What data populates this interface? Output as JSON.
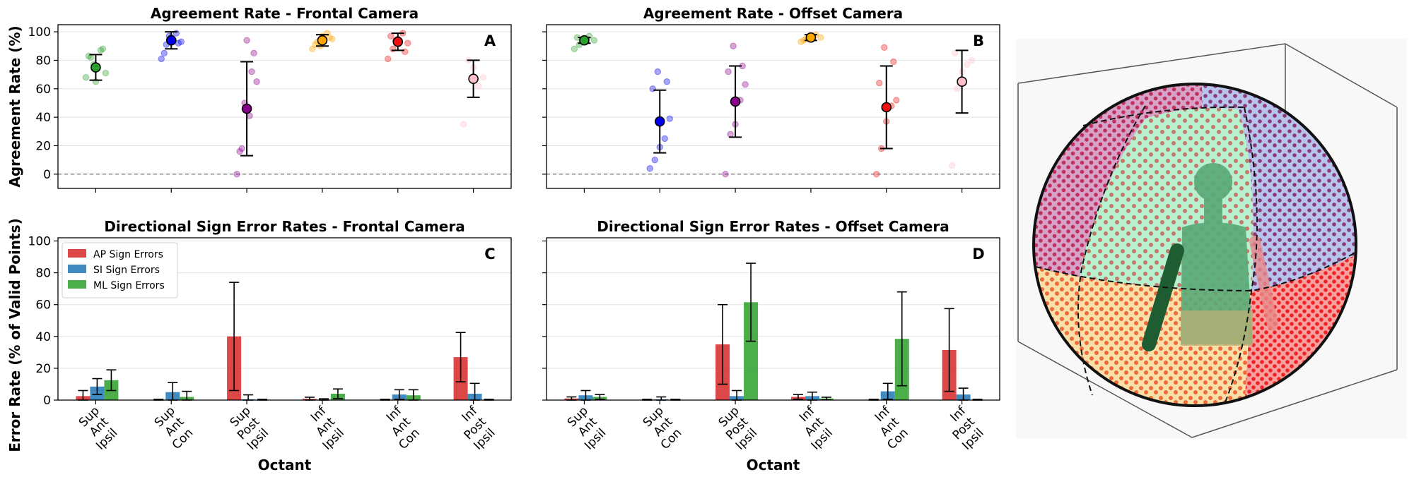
{
  "figure": {
    "shared_ylabel_top": "Agreement Rate (%)",
    "shared_ylabel_bottom": "Error Rate (% of Valid Points)"
  },
  "chart_data": [
    {
      "id": "A",
      "type": "scatter",
      "title": "Agreement Rate - Frontal Camera",
      "panel_label": "A",
      "xlabel": "",
      "ylabel": "Agreement Rate (%)",
      "ylim": [
        -10,
        105
      ],
      "yticks": [
        0,
        20,
        40,
        60,
        80,
        100
      ],
      "grid": true,
      "reference_line": 0,
      "categories": [
        "Sup Ant Ipsil",
        "Sup Ant Con",
        "Sup Post Ipsil",
        "Inf Ant Ipsil",
        "Inf Ant Con",
        "Inf Post Ipsil"
      ],
      "mean": [
        75,
        94,
        46,
        94,
        93,
        67
      ],
      "sd": [
        9,
        6,
        33,
        4,
        6,
        13
      ],
      "colors": [
        "#2ca02c",
        "#0000ee",
        "#8b008b",
        "#ffa500",
        "#ee1111",
        "#ffc0cb"
      ],
      "points": [
        [
          68,
          82,
          65,
          87,
          71,
          83,
          88,
          77
        ],
        [
          81,
          91,
          96,
          99,
          93,
          85,
          92,
          97
        ],
        [
          0,
          18,
          94,
          72,
          65,
          16,
          85,
          50,
          41
        ],
        [
          88,
          93,
          97,
          99,
          95,
          91,
          96,
          90
        ],
        [
          81,
          88,
          95,
          99,
          92,
          97,
          86,
          94
        ],
        [
          35,
          80,
          75,
          62,
          68
        ]
      ]
    },
    {
      "id": "B",
      "type": "scatter",
      "title": "Agreement Rate - Offset Camera",
      "panel_label": "B",
      "xlabel": "",
      "ylabel": "",
      "ylim": [
        -10,
        105
      ],
      "yticks": [
        0,
        20,
        40,
        60,
        80,
        100
      ],
      "grid": true,
      "reference_line": 0,
      "categories": [
        "Sup Ant Ipsil",
        "Sup Ant Con",
        "Sup Post Ipsil",
        "Inf Ant Ipsil",
        "Inf Ant Con",
        "Inf Post Ipsil"
      ],
      "mean": [
        94,
        37,
        51,
        96,
        47,
        65
      ],
      "sd": [
        2,
        22,
        25,
        2,
        29,
        22
      ],
      "colors": [
        "#2ca02c",
        "#0000ee",
        "#8b008b",
        "#ffa500",
        "#ee1111",
        "#ffc0cb"
      ],
      "points": [
        [
          88,
          91,
          95,
          97,
          94,
          96
        ],
        [
          4,
          10,
          19,
          25,
          39,
          60,
          65,
          72
        ],
        [
          0,
          28,
          35,
          52,
          63,
          72,
          76,
          90
        ],
        [
          93,
          95,
          97,
          98,
          96,
          94
        ],
        [
          0,
          18,
          37,
          48,
          52,
          64,
          79,
          89
        ],
        [
          6,
          60,
          72,
          77,
          80,
          85
        ]
      ]
    },
    {
      "id": "C",
      "type": "bar",
      "title": "Directional Sign Error Rates - Frontal Camera",
      "panel_label": "C",
      "xlabel": "Octant",
      "ylabel": "Error Rate (% of Valid Points)",
      "ylim": [
        0,
        102
      ],
      "yticks": [
        0,
        20,
        40,
        60,
        80,
        100
      ],
      "grid": true,
      "legend_position": "top-left",
      "categories": [
        "Sup Ant Ipsil",
        "Sup Ant Con",
        "Sup Post Ipsil",
        "Inf Ant Ipsil",
        "Inf Ant Con",
        "Inf Post Ipsil"
      ],
      "tick_lines": [
        [
          "Sup",
          "Ant",
          "Ipsil"
        ],
        [
          "Sup",
          "Ant",
          "Con"
        ],
        [
          "Sup",
          "Post",
          "Ipsil"
        ],
        [
          "Inf",
          "Ant",
          "Ipsil"
        ],
        [
          "Inf",
          "Ant",
          "Con"
        ],
        [
          "Inf",
          "Post",
          "Ipsil"
        ]
      ],
      "series": [
        {
          "name": "AP Sign Errors",
          "color": "#d62728",
          "values": [
            2.5,
            0.2,
            40,
            0.8,
            0.2,
            27
          ],
          "errors": [
            3.5,
            0.3,
            34,
            1,
            0.3,
            15.5
          ]
        },
        {
          "name": "SI Sign Errors",
          "color": "#1f77b4",
          "values": [
            8.5,
            5,
            0.5,
            0.3,
            3.5,
            4
          ],
          "errors": [
            5,
            6,
            2.8,
            0.5,
            3,
            6.5
          ]
        },
        {
          "name": "ML Sign Errors",
          "color": "#2ca02c",
          "values": [
            12.5,
            2,
            0.2,
            4,
            3,
            0.2
          ],
          "errors": [
            6.5,
            3.5,
            0.3,
            3,
            3.5,
            0.3
          ]
        }
      ]
    },
    {
      "id": "D",
      "type": "bar",
      "title": "Directional Sign Error Rates - Offset Camera",
      "panel_label": "D",
      "xlabel": "Octant",
      "ylabel": "",
      "ylim": [
        0,
        102
      ],
      "yticks": [
        0,
        20,
        40,
        60,
        80,
        100
      ],
      "grid": true,
      "categories": [
        "Sup Ant Ipsil",
        "Sup Ant Con",
        "Sup Post Ipsil",
        "Inf Ant Ipsil",
        "Inf Ant Con",
        "Inf Post Ipsil"
      ],
      "tick_lines": [
        [
          "Sup",
          "Ant",
          "Ipsil"
        ],
        [
          "Sup",
          "Ant",
          "Con"
        ],
        [
          "Sup",
          "Post",
          "Ipsil"
        ],
        [
          "Inf",
          "Ant",
          "Ipsil"
        ],
        [
          "Inf",
          "Ant",
          "Con"
        ],
        [
          "Inf",
          "Post",
          "Ipsil"
        ]
      ],
      "series": [
        {
          "name": "AP Sign Errors",
          "color": "#d62728",
          "values": [
            1,
            0.2,
            35,
            2,
            0.2,
            31.5
          ],
          "errors": [
            1,
            0.3,
            25,
            1.5,
            0.3,
            26
          ]
        },
        {
          "name": "SI Sign Errors",
          "color": "#1f77b4",
          "values": [
            3,
            0.5,
            2.5,
            2.5,
            5.5,
            3.5
          ],
          "errors": [
            3,
            1.5,
            3.5,
            2.5,
            5,
            4
          ]
        },
        {
          "name": "ML Sign Errors",
          "color": "#2ca02c",
          "values": [
            2,
            0.2,
            61.5,
            1,
            38.5,
            0.2
          ],
          "errors": [
            1.5,
            0.3,
            24.5,
            0.8,
            29.5,
            0.3
          ]
        }
      ]
    }
  ]
}
